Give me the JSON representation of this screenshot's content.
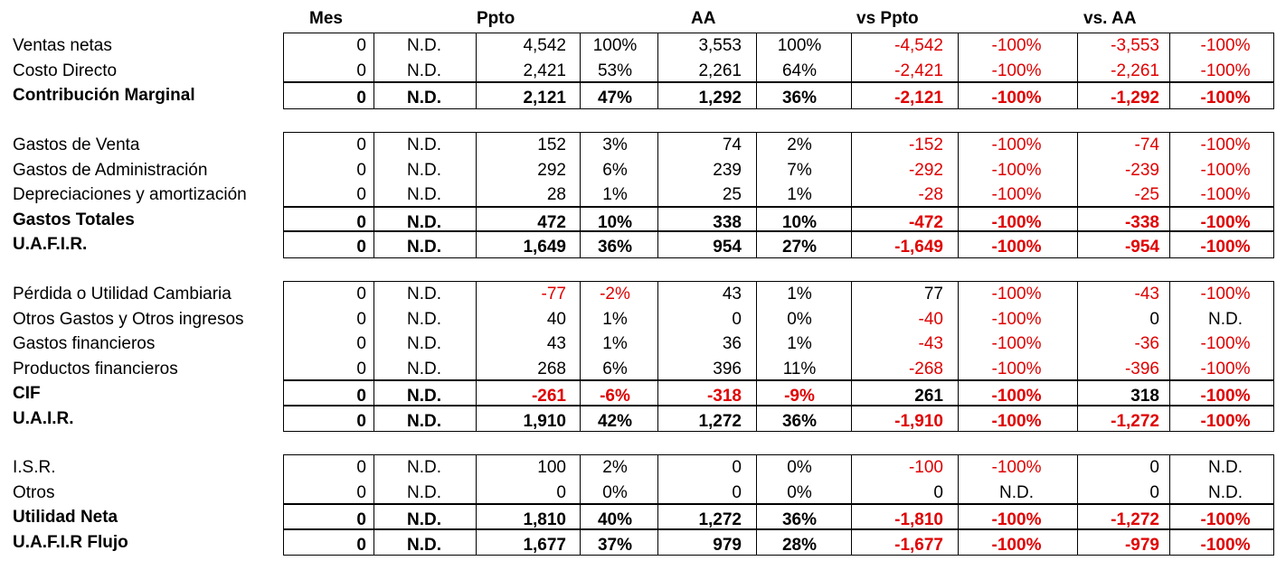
{
  "headers": {
    "mes": "Mes",
    "ppto": "Ppto",
    "aa": "AA",
    "vs_ppto": "vs Ppto",
    "vs_aa": "vs. AA"
  },
  "sections": [
    {
      "rows": [
        {
          "label": "Ventas netas",
          "bold": false,
          "cells": [
            "0",
            "N.D.",
            "4,542",
            "100%",
            "3,553",
            "100%",
            "-4,542",
            "-100%",
            "-3,553",
            "-100%"
          ]
        },
        {
          "label": "Costo Directo",
          "bold": false,
          "cells": [
            "0",
            "N.D.",
            "2,421",
            "53%",
            "2,261",
            "64%",
            "-2,421",
            "-100%",
            "-2,261",
            "-100%"
          ]
        },
        {
          "label": "Contribución Marginal",
          "bold": true,
          "cells": [
            "0",
            "N.D.",
            "2,121",
            "47%",
            "1,292",
            "36%",
            "-2,121",
            "-100%",
            "-1,292",
            "-100%"
          ]
        }
      ]
    },
    {
      "rows": [
        {
          "label": "Gastos de Venta",
          "bold": false,
          "cells": [
            "0",
            "N.D.",
            "152",
            "3%",
            "74",
            "2%",
            "-152",
            "-100%",
            "-74",
            "-100%"
          ]
        },
        {
          "label": "Gastos de Administración",
          "bold": false,
          "cells": [
            "0",
            "N.D.",
            "292",
            "6%",
            "239",
            "7%",
            "-292",
            "-100%",
            "-239",
            "-100%"
          ]
        },
        {
          "label": "Depreciaciones y amortización",
          "bold": false,
          "cells": [
            "0",
            "N.D.",
            "28",
            "1%",
            "25",
            "1%",
            "-28",
            "-100%",
            "-25",
            "-100%"
          ]
        },
        {
          "label": "Gastos Totales",
          "bold": true,
          "cells": [
            "0",
            "N.D.",
            "472",
            "10%",
            "338",
            "10%",
            "-472",
            "-100%",
            "-338",
            "-100%"
          ]
        },
        {
          "label": "U.A.F.I.R.",
          "bold": true,
          "cells": [
            "0",
            "N.D.",
            "1,649",
            "36%",
            "954",
            "27%",
            "-1,649",
            "-100%",
            "-954",
            "-100%"
          ]
        }
      ]
    },
    {
      "rows": [
        {
          "label": "Pérdida o Utilidad Cambiaria",
          "bold": false,
          "cells": [
            "0",
            "N.D.",
            "-77",
            "-2%",
            "43",
            "1%",
            "77",
            "-100%",
            "-43",
            "-100%"
          ]
        },
        {
          "label": "Otros Gastos y Otros ingresos",
          "bold": false,
          "cells": [
            "0",
            "N.D.",
            "40",
            "1%",
            "0",
            "0%",
            "-40",
            "-100%",
            "0",
            "N.D."
          ]
        },
        {
          "label": "Gastos financieros",
          "bold": false,
          "cells": [
            "0",
            "N.D.",
            "43",
            "1%",
            "36",
            "1%",
            "-43",
            "-100%",
            "-36",
            "-100%"
          ]
        },
        {
          "label": "Productos financieros",
          "bold": false,
          "cells": [
            "0",
            "N.D.",
            "268",
            "6%",
            "396",
            "11%",
            "-268",
            "-100%",
            "-396",
            "-100%"
          ]
        },
        {
          "label": "CIF",
          "bold": true,
          "cells": [
            "0",
            "N.D.",
            "-261",
            "-6%",
            "-318",
            "-9%",
            "261",
            "-100%",
            "318",
            "-100%"
          ]
        },
        {
          "label": "U.A.I.R.",
          "bold": true,
          "cells": [
            "0",
            "N.D.",
            "1,910",
            "42%",
            "1,272",
            "36%",
            "-1,910",
            "-100%",
            "-1,272",
            "-100%"
          ]
        }
      ]
    },
    {
      "rows": [
        {
          "label": "I.S.R.",
          "bold": false,
          "cells": [
            "0",
            "N.D.",
            "100",
            "2%",
            "0",
            "0%",
            "-100",
            "-100%",
            "0",
            "N.D."
          ]
        },
        {
          "label": "Otros",
          "bold": false,
          "cells": [
            "0",
            "N.D.",
            "0",
            "0%",
            "0",
            "0%",
            "0",
            "N.D.",
            "0",
            "N.D."
          ]
        },
        {
          "label": "Utilidad Neta",
          "bold": true,
          "cells": [
            "0",
            "N.D.",
            "1,810",
            "40%",
            "1,272",
            "36%",
            "-1,810",
            "-100%",
            "-1,272",
            "-100%"
          ]
        },
        {
          "label": "U.A.F.I.R Flujo",
          "bold": true,
          "cells": [
            "0",
            "N.D.",
            "1,677",
            "37%",
            "979",
            "28%",
            "-1,677",
            "-100%",
            "-979",
            "-100%"
          ]
        }
      ]
    }
  ],
  "colors": {
    "negative": "#e00000",
    "text": "#000000",
    "border": "#000000"
  }
}
